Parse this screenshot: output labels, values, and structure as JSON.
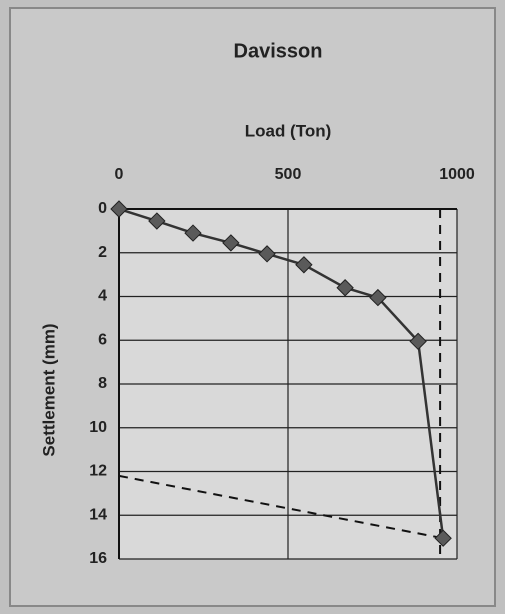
{
  "chart_data": {
    "type": "line",
    "title": "Davisson",
    "x_label": "Load (Ton)",
    "y_label": "Settlement (mm)",
    "x": [
      0,
      112,
      219,
      331,
      438,
      547,
      669,
      766,
      885,
      959
    ],
    "values": [
      0,
      0.55,
      1.1,
      1.55,
      2.05,
      2.55,
      3.6,
      4.05,
      6.05,
      15.05
    ],
    "color": "#333333",
    "marker_color": "#5a5a5a",
    "xlim": [
      0,
      1000
    ],
    "xticks": [
      0,
      500,
      1000
    ],
    "x_axis_position": "top",
    "ylim": [
      0,
      16
    ],
    "yticks": [
      0,
      2,
      4,
      6,
      8,
      10,
      12,
      14,
      16
    ],
    "y_inverted": true,
    "grid": true,
    "reference_lines": [
      {
        "x": [
          950,
          950
        ],
        "values": [
          0,
          16
        ]
      },
      {
        "x": [
          0,
          959
        ],
        "values": [
          12.2,
          15.05
        ]
      }
    ]
  }
}
